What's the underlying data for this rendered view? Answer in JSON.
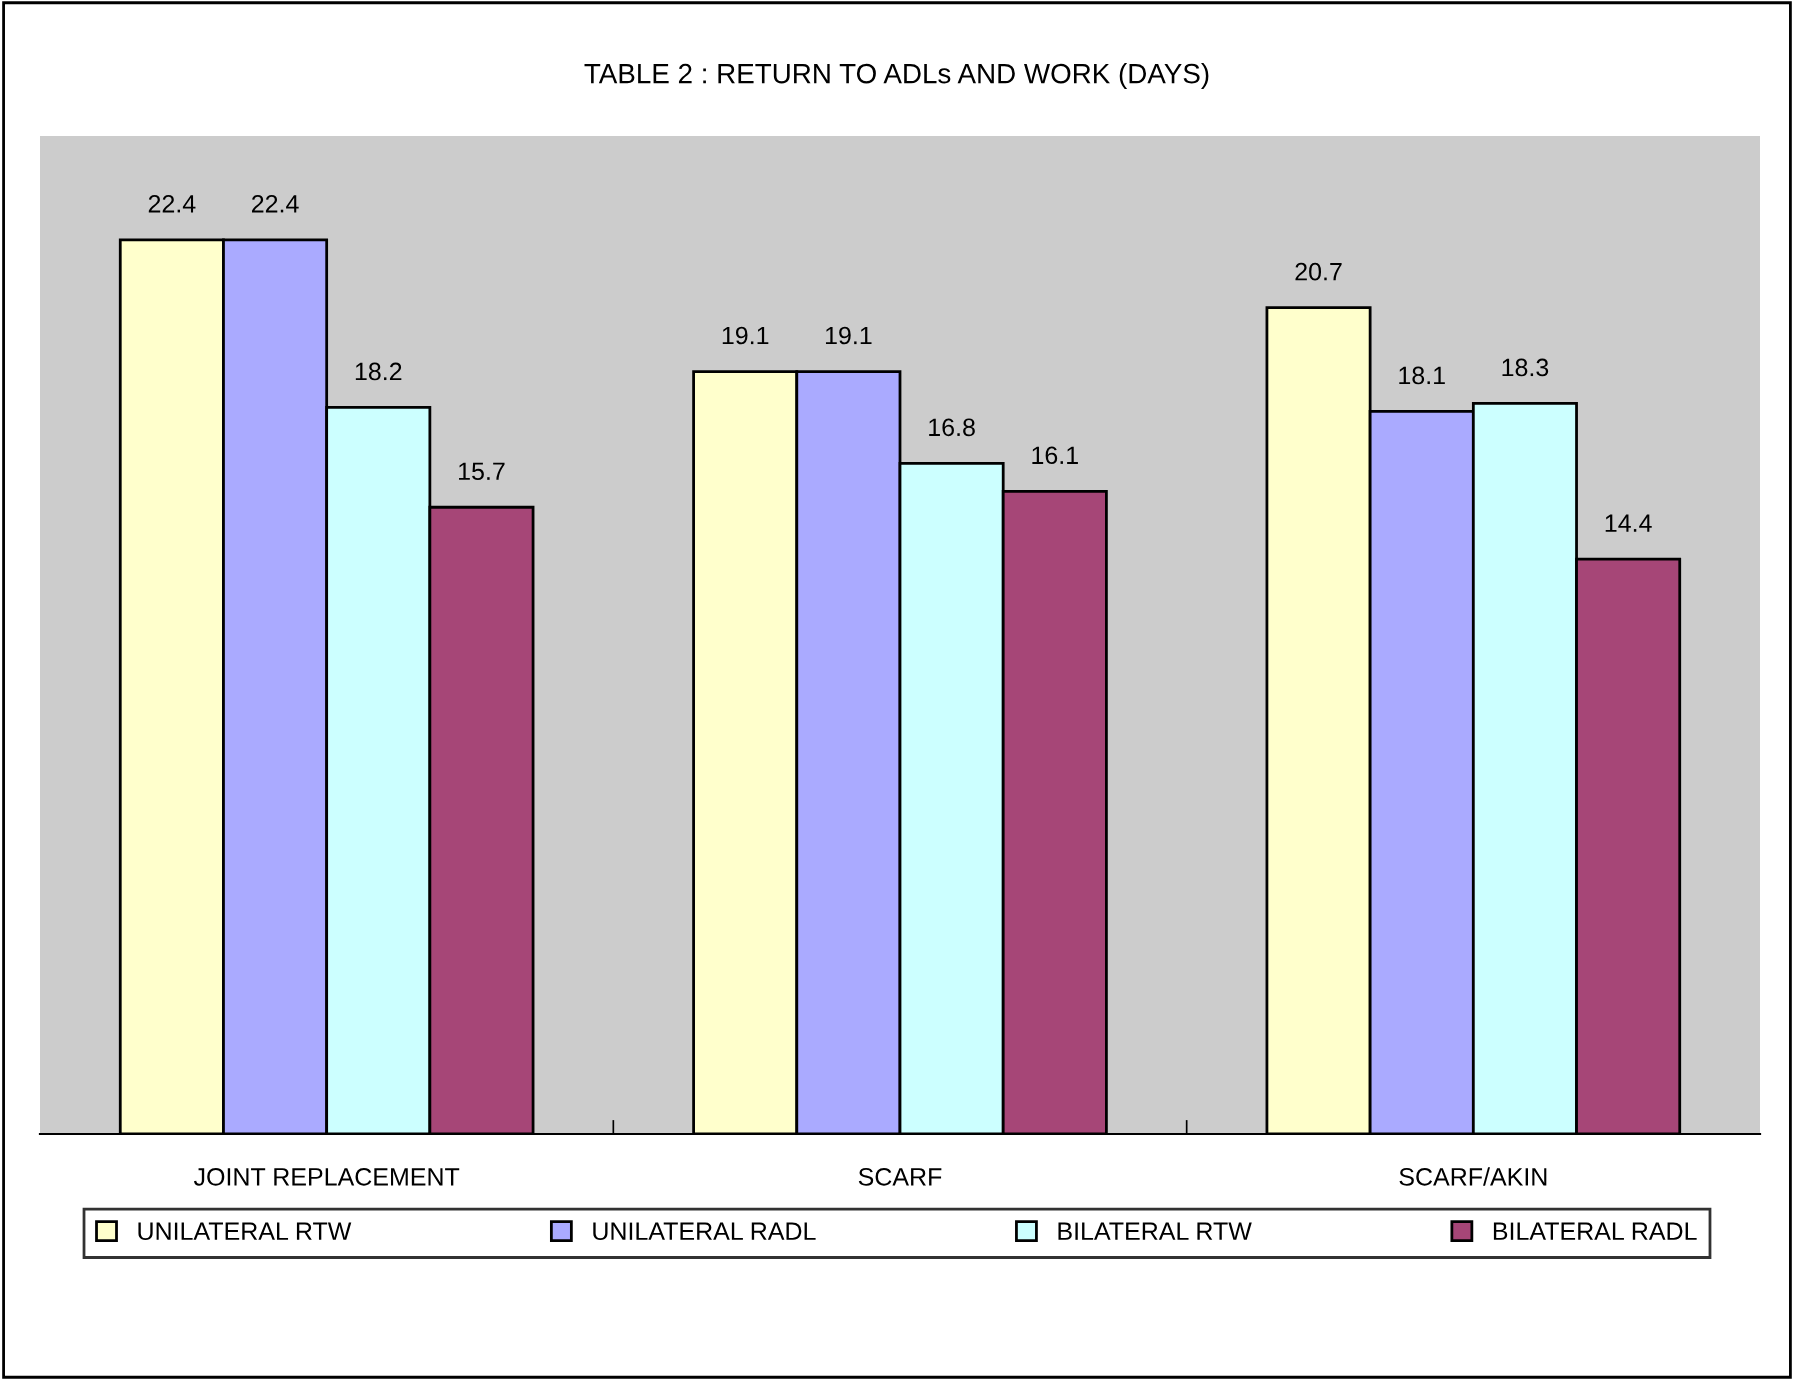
{
  "chart_data": {
    "type": "bar",
    "title": "TABLE 2 : RETURN TO ADLs AND WORK (DAYS)",
    "categories": [
      "JOINT REPLACEMENT",
      "SCARF",
      "SCARF/AKIN"
    ],
    "series": [
      {
        "name": "UNILATERAL RTW",
        "color": "#ffffcc",
        "values": [
          22.4,
          19.1,
          20.7
        ]
      },
      {
        "name": "UNILATERAL RADL",
        "color": "#aaaaff",
        "values": [
          22.4,
          19.1,
          18.1
        ]
      },
      {
        "name": "BILATERAL RTW",
        "color": "#ccffff",
        "values": [
          18.2,
          16.8,
          18.3
        ]
      },
      {
        "name": "BILATERAL RADL",
        "color": "#a64677",
        "values": [
          15.7,
          16.1,
          14.4
        ]
      }
    ],
    "ylim": [
      0,
      25
    ],
    "data_labels": true,
    "grid": false,
    "legend": "bottom",
    "tick_labels": "x"
  }
}
